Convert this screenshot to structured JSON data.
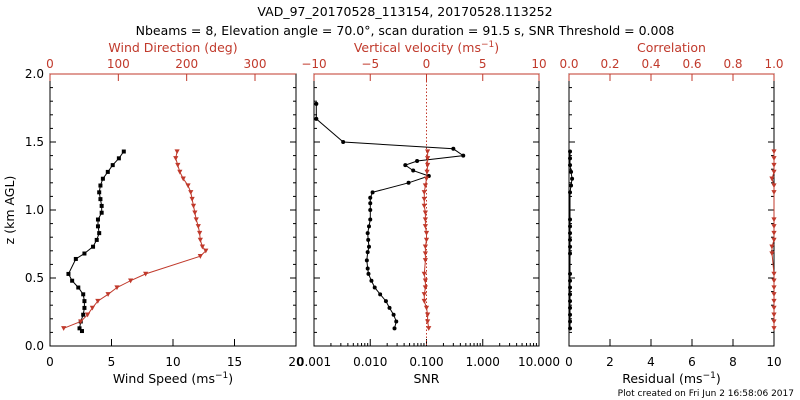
{
  "figure": {
    "title_line1": "VAD_97_20170528_113154, 20170528.113252",
    "title_line2": "Nbeams = 8, Elevation angle = 70.0°, scan duration = 91.5 s, SNR Threshold = 0.008",
    "footer": "Plot created on Fri Jun  2 16:58:06 2017",
    "black": "#000000",
    "red": "#c0392b"
  },
  "chart_data": [
    {
      "type": "line",
      "panel": "wind",
      "ylabel": "z (km AGL)",
      "ylim": [
        0.0,
        2.0
      ],
      "yticks": [
        0.0,
        0.5,
        1.0,
        1.5,
        2.0
      ],
      "ytick_labels": [
        "0.0",
        "0.5",
        "1.0",
        "1.5",
        "2.0"
      ],
      "bottom_axis": {
        "label": "Wind Speed (ms",
        "label_sup": "−1",
        "label_end": ")",
        "lim": [
          0,
          20
        ],
        "ticks": [
          0,
          5,
          10,
          15,
          20
        ],
        "tick_labels": [
          "0",
          "5",
          "10",
          "15",
          "20"
        ]
      },
      "top_axis": {
        "label": "Wind Direction (deg)",
        "lim": [
          0,
          360
        ],
        "ticks": [
          0,
          100,
          200,
          300
        ],
        "tick_labels": [
          "0",
          "100",
          "200",
          "300"
        ]
      },
      "series": [
        {
          "axis": "bottom",
          "color": "#000000",
          "marker": "square",
          "points": [
            [
              6.0,
              1.43
            ],
            [
              5.6,
              1.38
            ],
            [
              5.1,
              1.33
            ],
            [
              4.7,
              1.28
            ],
            [
              4.3,
              1.23
            ],
            [
              4.1,
              1.18
            ],
            [
              4.0,
              1.13
            ],
            [
              4.1,
              1.08
            ],
            [
              4.2,
              1.03
            ],
            [
              4.2,
              0.98
            ],
            [
              3.9,
              0.93
            ],
            [
              3.9,
              0.88
            ],
            [
              4.0,
              0.83
            ],
            [
              3.8,
              0.78
            ],
            [
              3.5,
              0.73
            ],
            [
              2.8,
              0.68
            ],
            [
              2.1,
              0.64
            ],
            [
              1.5,
              0.53
            ],
            [
              1.8,
              0.48
            ],
            [
              2.3,
              0.43
            ],
            [
              2.7,
              0.38
            ],
            [
              2.8,
              0.33
            ],
            [
              2.8,
              0.28
            ],
            [
              2.7,
              0.23
            ],
            [
              2.5,
              0.18
            ],
            [
              2.4,
              0.13
            ],
            [
              2.6,
              0.11
            ]
          ]
        },
        {
          "axis": "top",
          "color": "#c0392b",
          "marker": "triangle",
          "points": [
            [
              186,
              1.43
            ],
            [
              184,
              1.38
            ],
            [
              187,
              1.33
            ],
            [
              190,
              1.28
            ],
            [
              195,
              1.23
            ],
            [
              202,
              1.18
            ],
            [
              206,
              1.13
            ],
            [
              208,
              1.08
            ],
            [
              210,
              1.03
            ],
            [
              212,
              0.98
            ],
            [
              214,
              0.93
            ],
            [
              217,
              0.88
            ],
            [
              219,
              0.83
            ],
            [
              220,
              0.78
            ],
            [
              223,
              0.73
            ],
            [
              228,
              0.7
            ],
            [
              220,
              0.66
            ],
            [
              140,
              0.53
            ],
            [
              118,
              0.48
            ],
            [
              98,
              0.43
            ],
            [
              85,
              0.38
            ],
            [
              70,
              0.33
            ],
            [
              62,
              0.28
            ],
            [
              55,
              0.23
            ],
            [
              45,
              0.18
            ],
            [
              20,
              0.13
            ]
          ]
        }
      ]
    },
    {
      "type": "line",
      "panel": "snr",
      "ylim": [
        0.0,
        2.0
      ],
      "bottom_axis": {
        "label": "SNR",
        "scale": "log",
        "lim": [
          0.001,
          10.0
        ],
        "ticks": [
          0.001,
          0.01,
          0.1,
          1.0,
          10.0
        ],
        "tick_labels": [
          "0.001",
          "0.010",
          "0.100",
          "1.000",
          "10.000"
        ]
      },
      "top_axis": {
        "label": "Vertical velocity (ms",
        "label_sup": "−1",
        "label_end": ")",
        "lim": [
          -10,
          10
        ],
        "ticks": [
          -10,
          -5,
          0,
          5,
          10
        ],
        "tick_labels": [
          "−10",
          "−5",
          "0",
          "5",
          "10"
        ],
        "zero_line": true
      },
      "series": [
        {
          "axis": "bottom",
          "color": "#000000",
          "marker": "circle",
          "points": [
            [
              0.0011,
              1.78
            ],
            [
              0.0011,
              1.67
            ],
            [
              0.0033,
              1.5
            ],
            [
              0.3,
              1.45
            ],
            [
              0.45,
              1.4
            ],
            [
              0.068,
              1.36
            ],
            [
              0.042,
              1.33
            ],
            [
              0.058,
              1.29
            ],
            [
              0.11,
              1.25
            ],
            [
              0.048,
              1.2
            ],
            [
              0.011,
              1.13
            ],
            [
              0.01,
              1.09
            ],
            [
              0.01,
              1.05
            ],
            [
              0.01,
              1.0
            ],
            [
              0.01,
              0.93
            ],
            [
              0.0095,
              0.88
            ],
            [
              0.009,
              0.83
            ],
            [
              0.0092,
              0.78
            ],
            [
              0.0095,
              0.73
            ],
            [
              0.009,
              0.69
            ],
            [
              0.0087,
              0.63
            ],
            [
              0.009,
              0.57
            ],
            [
              0.0093,
              0.53
            ],
            [
              0.0105,
              0.48
            ],
            [
              0.012,
              0.43
            ],
            [
              0.015,
              0.38
            ],
            [
              0.019,
              0.33
            ],
            [
              0.022,
              0.28
            ],
            [
              0.026,
              0.23
            ],
            [
              0.029,
              0.18
            ],
            [
              0.027,
              0.13
            ]
          ]
        },
        {
          "axis": "top",
          "color": "#c0392b",
          "marker": "triangle",
          "points": [
            [
              0.1,
              1.43
            ],
            [
              0.1,
              1.38
            ],
            [
              0.1,
              1.33
            ],
            [
              0.05,
              1.28
            ],
            [
              0.0,
              1.23
            ],
            [
              -0.1,
              1.18
            ],
            [
              -0.2,
              1.13
            ],
            [
              -0.2,
              1.08
            ],
            [
              -0.2,
              1.03
            ],
            [
              -0.1,
              0.98
            ],
            [
              -0.1,
              0.93
            ],
            [
              -0.1,
              0.88
            ],
            [
              0.0,
              0.83
            ],
            [
              0.0,
              0.78
            ],
            [
              -0.1,
              0.73
            ],
            [
              -0.1,
              0.68
            ],
            [
              -0.1,
              0.63
            ],
            [
              -0.2,
              0.53
            ],
            [
              -0.1,
              0.48
            ],
            [
              -0.1,
              0.43
            ],
            [
              -0.2,
              0.38
            ],
            [
              -0.2,
              0.33
            ],
            [
              0.0,
              0.28
            ],
            [
              0.1,
              0.23
            ],
            [
              0.1,
              0.18
            ],
            [
              0.2,
              0.13
            ]
          ]
        }
      ]
    },
    {
      "type": "line",
      "panel": "residual",
      "ylim": [
        0.0,
        2.0
      ],
      "bottom_axis": {
        "label": "Residual (ms",
        "label_sup": "−1",
        "label_end": ")",
        "lim": [
          0,
          10
        ],
        "ticks": [
          0,
          2,
          4,
          6,
          8,
          10
        ],
        "tick_labels": [
          "0",
          "2",
          "4",
          "6",
          "8",
          "10"
        ]
      },
      "top_axis": {
        "label": "Correlation",
        "lim": [
          0.0,
          1.0
        ],
        "ticks": [
          0.0,
          0.2,
          0.4,
          0.6,
          0.8,
          1.0
        ],
        "tick_labels": [
          "0.0",
          "0.2",
          "0.4",
          "0.6",
          "0.8",
          "1.0"
        ]
      },
      "series": [
        {
          "axis": "bottom",
          "color": "#000000",
          "marker": "circle",
          "points": [
            [
              0.05,
              1.43
            ],
            [
              0.05,
              1.38
            ],
            [
              0.05,
              1.33
            ],
            [
              0.1,
              1.28
            ],
            [
              0.15,
              1.23
            ],
            [
              0.1,
              1.18
            ],
            [
              0.05,
              1.13
            ],
            [
              0.05,
              0.93
            ],
            [
              0.05,
              0.88
            ],
            [
              0.05,
              0.83
            ],
            [
              0.05,
              0.78
            ],
            [
              0.05,
              0.73
            ],
            [
              0.05,
              0.68
            ],
            [
              0.05,
              0.53
            ],
            [
              0.05,
              0.48
            ],
            [
              0.05,
              0.43
            ],
            [
              0.05,
              0.38
            ],
            [
              0.05,
              0.33
            ],
            [
              0.05,
              0.28
            ],
            [
              0.05,
              0.23
            ],
            [
              0.05,
              0.18
            ],
            [
              0.05,
              0.13
            ]
          ]
        },
        {
          "axis": "top",
          "color": "#c0392b",
          "marker": "triangle",
          "points": [
            [
              1.0,
              1.43
            ],
            [
              1.0,
              1.38
            ],
            [
              1.0,
              1.33
            ],
            [
              1.0,
              1.28
            ],
            [
              0.99,
              1.23
            ],
            [
              1.0,
              1.18
            ],
            [
              1.0,
              1.13
            ],
            [
              1.0,
              0.93
            ],
            [
              1.0,
              0.88
            ],
            [
              1.0,
              0.83
            ],
            [
              1.0,
              0.78
            ],
            [
              0.99,
              0.73
            ],
            [
              0.99,
              0.68
            ],
            [
              1.0,
              0.53
            ],
            [
              1.0,
              0.48
            ],
            [
              1.0,
              0.43
            ],
            [
              1.0,
              0.38
            ],
            [
              1.0,
              0.33
            ],
            [
              1.0,
              0.28
            ],
            [
              1.0,
              0.23
            ],
            [
              1.0,
              0.18
            ],
            [
              1.0,
              0.13
            ]
          ]
        }
      ]
    }
  ]
}
